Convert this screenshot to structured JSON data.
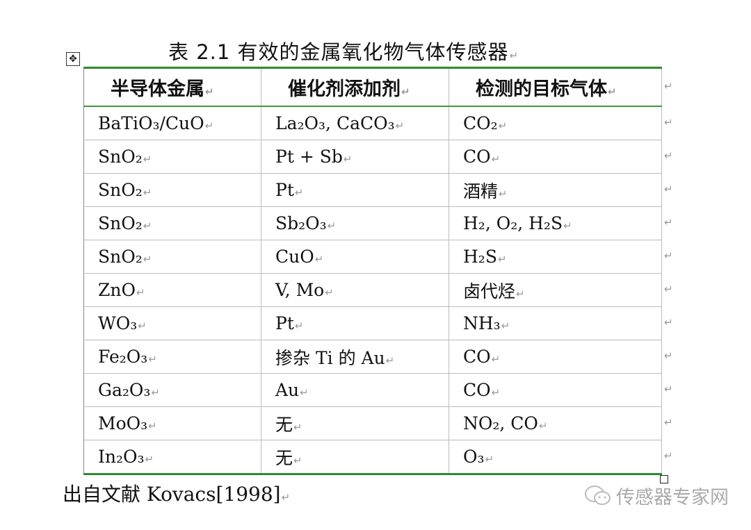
{
  "title": "表 2.1 有效的金属氧化物气体传感器",
  "table": {
    "headers": [
      "半导体金属",
      "催化剂添加剂",
      "检测的目标气体"
    ],
    "rows": [
      [
        "BaTiO₃/CuO",
        "La₂O₃, CaCO₃",
        "CO₂"
      ],
      [
        "SnO₂",
        "Pt + Sb",
        "CO"
      ],
      [
        "SnO₂",
        "Pt",
        "酒精"
      ],
      [
        "SnO₂",
        "Sb₂O₃",
        "H₂, O₂, H₂S"
      ],
      [
        "SnO₂",
        "CuO",
        "H₂S"
      ],
      [
        "ZnO",
        "V, Mo",
        "卤代烃"
      ],
      [
        "WO₃",
        "Pt",
        "NH₃"
      ],
      [
        "Fe₂O₃",
        "掺杂 Ti 的 Au",
        "CO"
      ],
      [
        "Ga₂O₃",
        "Au",
        "CO"
      ],
      [
        "MoO₃",
        "无",
        "NO₂, CO"
      ],
      [
        "In₂O₃",
        "无",
        "O₃"
      ]
    ]
  },
  "source": "出自文献 Kovacs[1998]",
  "watermark": "传感器专家网",
  "colors": {
    "border_accent": "#2e8b2e"
  }
}
